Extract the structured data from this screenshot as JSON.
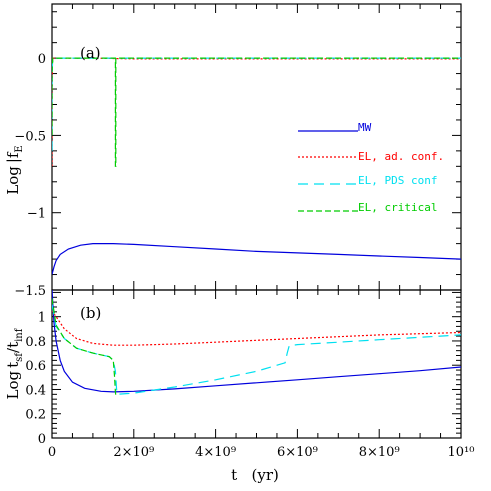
{
  "chart_data": [
    {
      "id": "panel-a",
      "type": "line",
      "panel_label": "(a)",
      "ylabel": "Log f_E",
      "xlim": [
        0,
        10000000000
      ],
      "ylim": [
        -1.5,
        0.35
      ],
      "x_ticks": [
        0,
        2000000000,
        4000000000,
        6000000000,
        8000000000,
        10000000000
      ],
      "y_ticks": [
        -1.5,
        -1,
        -0.5,
        0
      ],
      "y_tick_labels": [
        "−1.5",
        "−1",
        "−0.5",
        "0"
      ],
      "series": [
        {
          "name": "MW",
          "color": "#0000dd",
          "dash": "",
          "x": [
            0,
            50000000,
            100000000,
            200000000,
            400000000,
            700000000,
            1000000000,
            1500000000,
            2000000000,
            3000000000,
            4000000000,
            5000000000,
            6000000000,
            7000000000,
            8000000000,
            9000000000,
            10000000000
          ],
          "y": [
            -1.4,
            -1.35,
            -1.31,
            -1.27,
            -1.235,
            -1.21,
            -1.2,
            -1.2,
            -1.205,
            -1.22,
            -1.235,
            -1.25,
            -1.26,
            -1.27,
            -1.28,
            -1.29,
            -1.3
          ]
        },
        {
          "name": "EL, ad. conf.",
          "color": "#ff0000",
          "dash": "2,2",
          "x": [
            0,
            0,
            10000000,
            20000000,
            100000000,
            1000000000,
            2000000000,
            4000000000,
            6000000000,
            8000000000,
            10000000000
          ],
          "y": [
            -0.7,
            -0.3,
            -0.05,
            0,
            0,
            0,
            -0.005,
            -0.005,
            -0.005,
            -0.005,
            -0.005
          ]
        },
        {
          "name": "EL, PDS conf",
          "color": "#00e0f0",
          "dash": "10,6",
          "x": [
            0,
            0,
            10000000,
            30000000,
            100000000,
            1000000000,
            2000000000,
            4000000000,
            6000000000,
            8000000000,
            10000000000
          ],
          "y": [
            -0.6,
            -0.2,
            -0.03,
            0,
            0,
            0,
            0,
            0,
            0,
            0,
            0
          ]
        },
        {
          "name": "EL, critical",
          "color": "#00cc00",
          "dash": "6,3",
          "x": [
            0,
            0,
            20000000,
            100000000,
            1000000000,
            1550000000,
            1550000000,
            1560000000,
            1560000000,
            2000000000,
            4000000000,
            6000000000,
            8000000000,
            10000000000
          ],
          "y": [
            -0.5,
            -0.1,
            0,
            0,
            0,
            0,
            -0.7,
            -0.7,
            0,
            0,
            0,
            0,
            0,
            0
          ]
        }
      ],
      "legend": {
        "placement": "right-center",
        "entries": [
          "MW",
          "EL, ad. conf.",
          "EL, PDS conf",
          "EL, critical"
        ]
      }
    },
    {
      "id": "panel-b",
      "type": "line",
      "panel_label": "(b)",
      "ylabel": "Log t_sf/t_inf",
      "xlabel": "t   (yr)",
      "xlim": [
        0,
        10000000000
      ],
      "ylim": [
        0,
        1.22
      ],
      "x_ticks": [
        0,
        2000000000,
        4000000000,
        6000000000,
        8000000000,
        10000000000
      ],
      "x_tick_labels": [
        "0",
        "2×10⁹",
        "4×10⁹",
        "6×10⁹",
        "8×10⁹",
        "10¹⁰"
      ],
      "y_ticks": [
        0,
        0.2,
        0.4,
        0.6,
        0.8,
        1
      ],
      "y_tick_labels": [
        "0",
        "0.2",
        "0.4",
        "0.6",
        "0.8",
        "1"
      ],
      "series": [
        {
          "name": "MW",
          "color": "#0000dd",
          "dash": "",
          "x": [
            0,
            50000000,
            100000000,
            200000000,
            300000000,
            500000000,
            800000000,
            1200000000,
            1500000000,
            2000000000,
            3000000000,
            4000000000,
            5000000000,
            6000000000,
            7000000000,
            8000000000,
            9000000000,
            10000000000
          ],
          "y": [
            1.22,
            0.95,
            0.8,
            0.64,
            0.55,
            0.46,
            0.41,
            0.385,
            0.38,
            0.385,
            0.405,
            0.43,
            0.455,
            0.48,
            0.505,
            0.53,
            0.555,
            0.585
          ]
        },
        {
          "name": "EL, ad. conf.",
          "color": "#ff0000",
          "dash": "2,2",
          "x": [
            0,
            100000000,
            300000000,
            600000000,
            1000000000,
            1500000000,
            2000000000,
            3000000000,
            4000000000,
            5000000000,
            6000000000,
            7000000000,
            8000000000,
            9000000000,
            10000000000
          ],
          "y": [
            1.05,
            1.0,
            0.9,
            0.82,
            0.78,
            0.765,
            0.765,
            0.775,
            0.79,
            0.805,
            0.82,
            0.835,
            0.85,
            0.86,
            0.87
          ]
        },
        {
          "name": "EL, PDS conf",
          "color": "#00e0f0",
          "dash": "10,6",
          "x": [
            0,
            100000000,
            300000000,
            600000000,
            1000000000,
            1400000000,
            1500000000,
            1550000000,
            1580000000,
            1600000000,
            2000000000,
            3000000000,
            4000000000,
            5000000000,
            5500000000,
            5700000000,
            5750000000,
            5800000000,
            6000000000,
            7000000000,
            8000000000,
            9000000000,
            10000000000
          ],
          "y": [
            1.1,
            0.92,
            0.82,
            0.74,
            0.7,
            0.67,
            0.64,
            0.55,
            0.4,
            0.36,
            0.37,
            0.42,
            0.48,
            0.55,
            0.6,
            0.62,
            0.7,
            0.76,
            0.77,
            0.79,
            0.81,
            0.83,
            0.85
          ]
        },
        {
          "name": "EL, critical",
          "color": "#00cc00",
          "dash": "6,3",
          "x": [
            0,
            100000000,
            300000000,
            600000000,
            1000000000,
            1400000000,
            1500000000,
            1530000000,
            1550000000,
            1560000000
          ],
          "y": [
            1.15,
            0.93,
            0.82,
            0.74,
            0.7,
            0.67,
            0.64,
            0.5,
            0.38,
            0.35
          ]
        }
      ]
    }
  ],
  "xaxis_label": "t   (yr)"
}
